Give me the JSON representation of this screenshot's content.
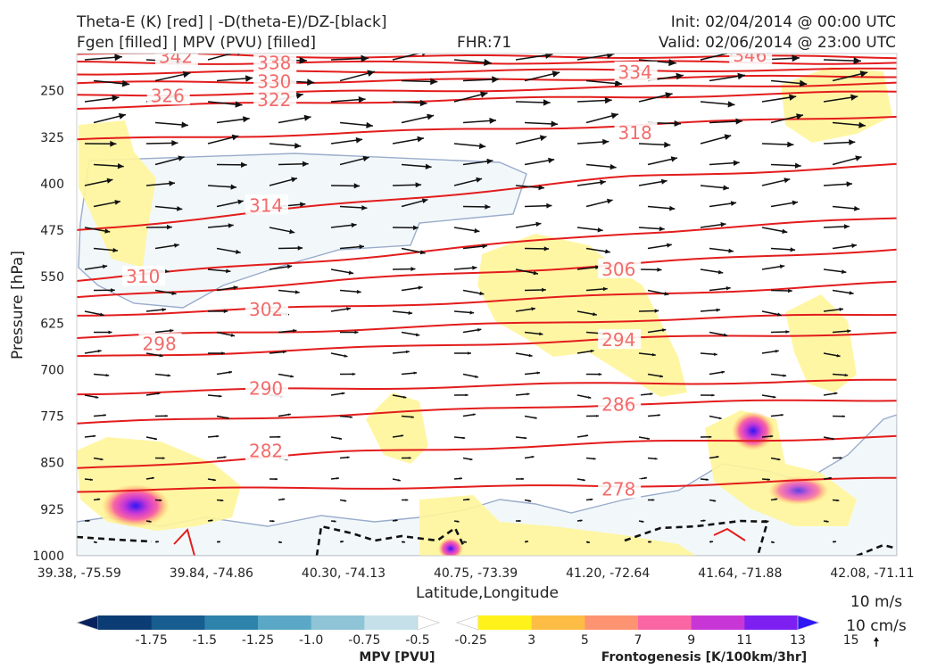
{
  "header": {
    "title_line1_left": "Theta-E (K) [red] | -D(theta-E)/DZ-[black]",
    "title_line2_left": "Fgen [filled] | MPV (PVU) [filled]",
    "fhr": "FHR:71",
    "init": "Init: 02/04/2014 @ 00:00 UTC",
    "valid": "Valid: 02/06/2014 @ 23:00 UTC"
  },
  "chart_data": {
    "type": "cross-section",
    "title": "Theta-E (K) [red] | -D(theta-E)/DZ-[black] | Fgen [filled] | MPV (PVU) [filled]",
    "xlabel": "Latitude,Longitude",
    "ylabel": "Pressure [hPa]",
    "x_tick_labels": [
      "39.38, -75.59",
      "39.84, -74.86",
      "40.30, -74.13",
      "40.75, -73.39",
      "41.20, -72.64",
      "41.64, -71.88",
      "42.08, -71.11"
    ],
    "y_ticks": [
      250,
      325,
      400,
      475,
      550,
      625,
      700,
      775,
      850,
      925,
      1000
    ],
    "y_range": [
      190,
      1000
    ],
    "theta_e_labels": [
      {
        "value": "342",
        "p": 195,
        "xf": 0.1
      },
      {
        "value": "338",
        "p": 205,
        "xf": 0.22
      },
      {
        "value": "330",
        "p": 235,
        "xf": 0.22
      },
      {
        "value": "322",
        "p": 265,
        "xf": 0.22
      },
      {
        "value": "326",
        "p": 258,
        "xf": 0.09
      },
      {
        "value": "334",
        "p": 220,
        "xf": 0.66
      },
      {
        "value": "346",
        "p": 193,
        "xf": 0.8
      },
      {
        "value": "318",
        "p": 318,
        "xf": 0.66
      },
      {
        "value": "314",
        "p": 435,
        "xf": 0.21
      },
      {
        "value": "310",
        "p": 550,
        "xf": 0.06
      },
      {
        "value": "306",
        "p": 538,
        "xf": 0.64
      },
      {
        "value": "302",
        "p": 603,
        "xf": 0.21
      },
      {
        "value": "298",
        "p": 658,
        "xf": 0.08
      },
      {
        "value": "294",
        "p": 652,
        "xf": 0.64
      },
      {
        "value": "290",
        "p": 730,
        "xf": 0.21
      },
      {
        "value": "286",
        "p": 756,
        "xf": 0.64
      },
      {
        "value": "282",
        "p": 831,
        "xf": 0.21
      },
      {
        "value": "278",
        "p": 893,
        "xf": 0.64
      }
    ],
    "theta_e_contours": [
      {
        "value": 342,
        "p": [
          190,
          195,
          195,
          196
        ]
      },
      {
        "value": 338,
        "p": [
          205,
          205,
          204,
          205
        ]
      },
      {
        "value": 334,
        "p": [
          222,
          219,
          217,
          216
        ]
      },
      {
        "value": 330,
        "p": [
          238,
          235,
          230,
          226
        ]
      },
      {
        "value": 326,
        "p": [
          258,
          252,
          245,
          238
        ]
      },
      {
        "value": 322,
        "p": [
          277,
          268,
          260,
          252
        ]
      },
      {
        "value": 318,
        "p": [
          330,
          318,
          306,
          290
        ]
      },
      {
        "value": 314,
        "p": [
          475,
          432,
          390,
          370
        ]
      },
      {
        "value": 310,
        "p": [
          555,
          520,
          480,
          455
        ]
      },
      {
        "value": 306,
        "p": [
          585,
          555,
          530,
          505
        ]
      },
      {
        "value": 302,
        "p": [
          612,
          598,
          580,
          560
        ]
      },
      {
        "value": 298,
        "p": [
          648,
          635,
          620,
          610
        ]
      },
      {
        "value": 294,
        "p": [
          680,
          666,
          650,
          640
        ]
      },
      {
        "value": 290,
        "p": [
          738,
          730,
          722,
          718
        ]
      },
      {
        "value": 286,
        "p": [
          787,
          772,
          755,
          748
        ]
      },
      {
        "value": 282,
        "p": [
          860,
          833,
          818,
          808
        ]
      },
      {
        "value": 278,
        "p": [
          895,
          890,
          888,
          875
        ]
      }
    ],
    "mpv_colorbar": {
      "title": "MPV [PVU]",
      "tick_labels": [
        "-1.75",
        "-1.5",
        "-1.25",
        "-1.0",
        "-0.75",
        "-0.5",
        "-0.25"
      ],
      "colors": [
        "#08215e",
        "#0b3d74",
        "#175d8f",
        "#2e83ac",
        "#5aa8c6",
        "#8ec4d6",
        "#c5e0e8",
        "#ffffff"
      ]
    },
    "fgen_colorbar": {
      "title": "Frontogenesis [K/100km/3hr]",
      "tick_labels": [
        "3",
        "5",
        "7",
        "9",
        "11",
        "13",
        "15"
      ],
      "colors": [
        "#ffffff",
        "#fff21a",
        "#fdbd45",
        "#fc9471",
        "#fa66a3",
        "#c837d6",
        "#7e1ff2",
        "#2f16f5"
      ]
    },
    "reference_vectors": [
      "10 m/s",
      "10 cm/s"
    ]
  }
}
